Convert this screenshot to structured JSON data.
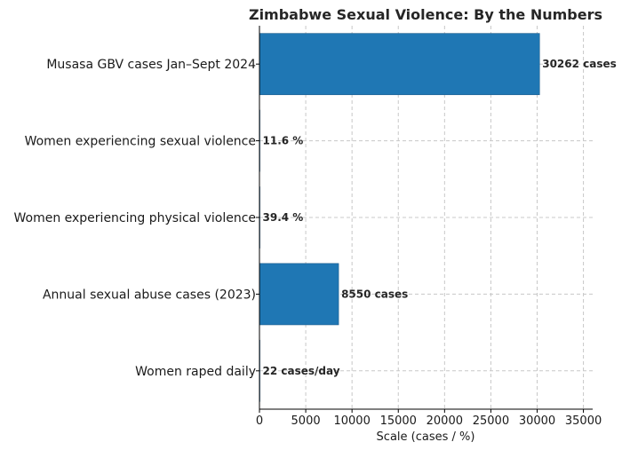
{
  "chart_data": {
    "type": "bar",
    "orientation": "horizontal",
    "title": "Zimbabwe Sexual Violence: By the Numbers",
    "xlabel": "Scale (cases / %)",
    "ylabel": "",
    "xlim": [
      0,
      36000
    ],
    "xticks": [
      0,
      5000,
      10000,
      15000,
      20000,
      25000,
      30000,
      35000
    ],
    "xtick_labels": [
      "0",
      "5000",
      "10000",
      "15000",
      "20000",
      "25000",
      "30000",
      "35000"
    ],
    "grid": true,
    "bar_color": "#1f77b4",
    "categories": [
      "Musasa GBV cases Jan–Sept 2024",
      "Women experiencing sexual violence",
      "Women experiencing physical violence",
      "Annual sexual abuse cases (2023)",
      "Women raped daily"
    ],
    "values": [
      30262,
      11.6,
      39.4,
      8550,
      22
    ],
    "data_labels": [
      "30262 cases",
      "11.6 %",
      "39.4 %",
      "8550 cases",
      "22 cases/day"
    ]
  }
}
